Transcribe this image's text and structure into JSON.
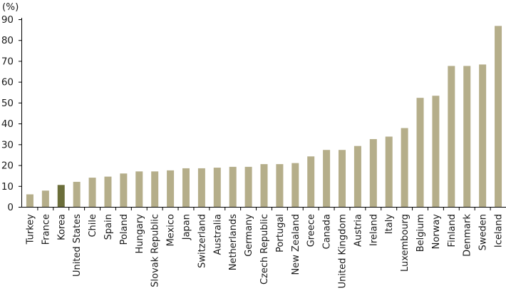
{
  "chart_data": {
    "type": "bar",
    "title": "",
    "xlabel": "",
    "ylabel": "",
    "unit_label": "(%)",
    "ylim": [
      0,
      90
    ],
    "yticks": [
      0,
      10,
      20,
      30,
      40,
      50,
      60,
      70,
      80,
      90
    ],
    "grid": false,
    "legend": "none",
    "categories": [
      "Turkey",
      "France",
      "Korea",
      "United States",
      "Chile",
      "Spain",
      "Poland",
      "Hungary",
      "Slovak Republic",
      "Mexico",
      "Japan",
      "Switzerland",
      "Australia",
      "Netherlands",
      "Germany",
      "Czech Republic",
      "Portugal",
      "New Zealand",
      "Greece",
      "Canada",
      "United Kingdom",
      "Austria",
      "Ireland",
      "Italy",
      "Luxembourg",
      "Belgium",
      "Norway",
      "Finland",
      "Denmark",
      "Sweden",
      "Iceland"
    ],
    "values": [
      6.0,
      7.8,
      10.5,
      12.0,
      14.0,
      14.5,
      16.0,
      17.0,
      17.0,
      17.5,
      18.5,
      18.5,
      18.8,
      19.2,
      19.2,
      20.5,
      20.5,
      21.0,
      24.2,
      27.3,
      27.3,
      29.2,
      32.5,
      33.7,
      37.8,
      52.3,
      53.3,
      67.6,
      67.6,
      68.3,
      86.8
    ],
    "colors": {
      "default_bar": "#b5ae8a",
      "highlight_bar": "#6b6e3a",
      "axis": "#000000"
    },
    "highlight": "Korea"
  }
}
